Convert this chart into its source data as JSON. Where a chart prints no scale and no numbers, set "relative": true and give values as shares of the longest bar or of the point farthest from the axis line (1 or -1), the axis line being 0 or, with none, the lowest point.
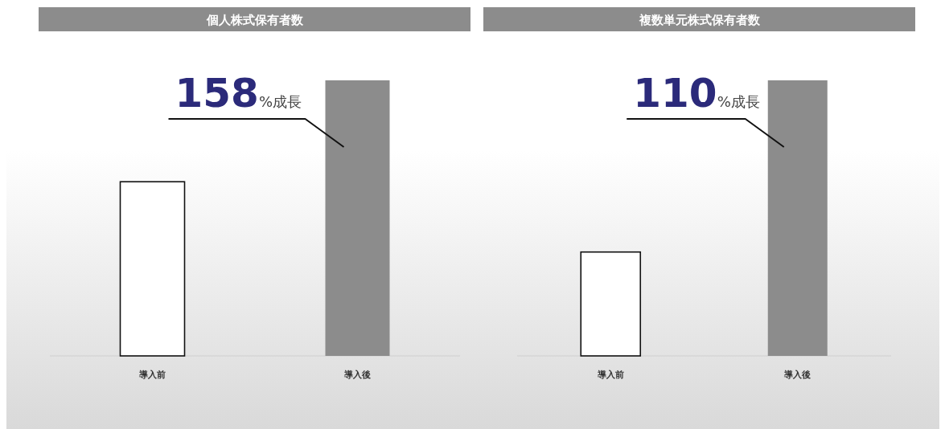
{
  "chart_data": [
    {
      "type": "bar",
      "title": "個人株式保有者数",
      "categories": [
        "導入前",
        "導入後"
      ],
      "values": [
        0.632,
        1
      ],
      "colors": [
        "#ffffff",
        "#8c8c8c"
      ],
      "relative": true,
      "annotations": [
        "158%成長"
      ]
    },
    {
      "type": "bar",
      "title": "複数単元株式保有者数",
      "categories": [
        "導入前",
        "導入後"
      ],
      "values": [
        0.377,
        1
      ],
      "colors": [
        "#ffffff",
        "#8c8c8c"
      ],
      "relative": true,
      "annotations": [
        "110%成長"
      ]
    }
  ]
}
